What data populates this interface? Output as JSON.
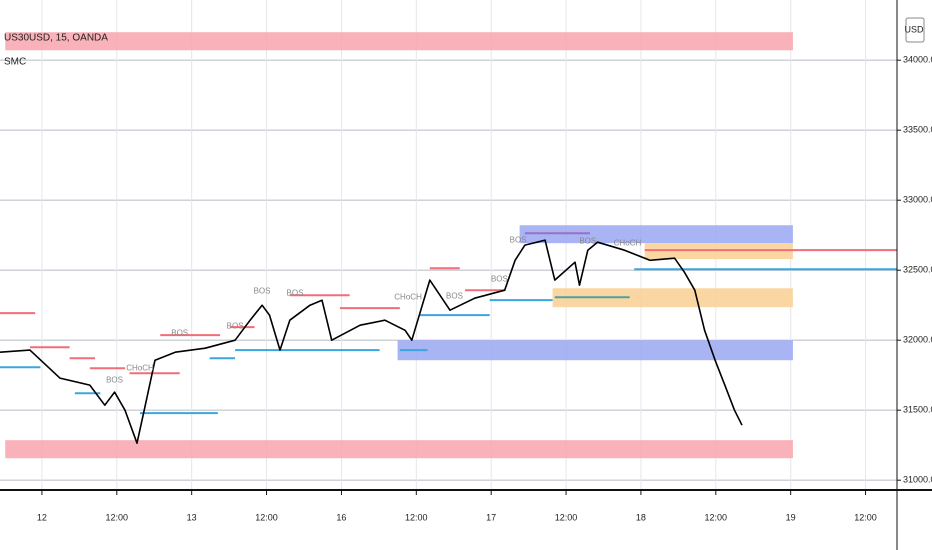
{
  "chart_data": {
    "type": "line",
    "title": "US30USD, 15, OANDA",
    "subtitle": "SMC",
    "y_axis_label": "USD",
    "color": "#000000",
    "grid": true,
    "x": [
      -0.56,
      -0.16,
      0.24,
      0.64,
      0.84,
      0.97,
      1.11,
      1.27,
      1.38,
      1.51,
      1.78,
      2.18,
      2.58,
      2.78,
      2.94,
      3.04,
      3.18,
      3.31,
      3.58,
      3.74,
      3.87,
      4.25,
      4.58,
      4.85,
      4.94,
      5.18,
      5.45,
      5.78,
      6.18,
      6.32,
      6.45,
      6.72,
      6.85,
      7.12,
      7.18,
      7.29,
      7.42,
      7.78,
      8.12,
      8.45,
      8.58,
      8.72,
      8.85,
      8.99,
      9.12,
      9.25,
      9.35
    ],
    "values": [
      31914,
      31929,
      31729,
      31679,
      31536,
      31629,
      31500,
      31264,
      31536,
      31857,
      31914,
      31943,
      32000,
      32143,
      32250,
      32179,
      31929,
      32143,
      32250,
      32286,
      32000,
      32107,
      32143,
      32071,
      32000,
      32429,
      32214,
      32300,
      32357,
      32571,
      32679,
      32714,
      32429,
      32557,
      32393,
      32643,
      32700,
      32643,
      32571,
      32586,
      32486,
      32357,
      32071,
      31857,
      31679,
      31500,
      31393
    ],
    "xlim": [
      -0.56,
      11.42
    ],
    "ylim": [
      30930,
      34430
    ],
    "xticks": [
      {
        "value": 0,
        "label": "12"
      },
      {
        "value": 1,
        "label": "12:00"
      },
      {
        "value": 2,
        "label": "13"
      },
      {
        "value": 3,
        "label": "12:00"
      },
      {
        "value": 4,
        "label": "16"
      },
      {
        "value": 5,
        "label": "12:00"
      },
      {
        "value": 6,
        "label": "17"
      },
      {
        "value": 7,
        "label": "12:00"
      },
      {
        "value": 8,
        "label": "18"
      },
      {
        "value": 9,
        "label": "12:00"
      },
      {
        "value": 10,
        "label": "19"
      },
      {
        "value": 11,
        "label": "12:00"
      }
    ],
    "yticks": [
      {
        "value": 34000,
        "label": "34000.0"
      },
      {
        "value": 33500,
        "label": "33500.0"
      },
      {
        "value": 33000,
        "label": "33000.0"
      },
      {
        "value": 32500,
        "label": "32500.0"
      },
      {
        "value": 32000,
        "label": "32000.0"
      },
      {
        "value": 31500,
        "label": "31500.0"
      },
      {
        "value": 31000,
        "label": "31000.0"
      }
    ],
    "zones": [
      {
        "x": [
          -0.49,
          10.03
        ],
        "y": [
          34071,
          34200
        ],
        "color": "#f8a5ad"
      },
      {
        "x": [
          -0.49,
          10.03
        ],
        "y": [
          31157,
          31286
        ],
        "color": "#f8a5ad"
      },
      {
        "x": [
          6.38,
          10.03
        ],
        "y": [
          32693,
          32821
        ],
        "color": "#9aa7f2"
      },
      {
        "x": [
          8.05,
          10.03
        ],
        "y": [
          32579,
          32693
        ],
        "color": "#f9cf93"
      },
      {
        "x": [
          6.82,
          10.03
        ],
        "y": [
          32236,
          32371
        ],
        "color": "#f9cf93"
      },
      {
        "x": [
          4.75,
          10.03
        ],
        "y": [
          31857,
          32000
        ],
        "color": "#9aa7f2"
      }
    ],
    "levels": [
      {
        "x": [
          8.05,
          11.42
        ],
        "y": 32643,
        "color": "#f26d78"
      },
      {
        "x": [
          7.91,
          11.42
        ],
        "y": 32507,
        "color": "#3aa6dd"
      },
      {
        "x": [
          -0.56,
          -0.09
        ],
        "y": 32193,
        "color": "#f26d78"
      },
      {
        "x": [
          -0.16,
          0.37
        ],
        "y": 31950,
        "color": "#f26d78"
      },
      {
        "x": [
          0.37,
          0.71
        ],
        "y": 31871,
        "color": "#f26d78"
      },
      {
        "x": [
          0.64,
          1.11
        ],
        "y": 31800,
        "color": "#f26d78"
      },
      {
        "x": [
          1.17,
          1.84
        ],
        "y": 31764,
        "color": "#f26d78"
      },
      {
        "x": [
          1.58,
          2.38
        ],
        "y": 32036,
        "color": "#f26d78"
      },
      {
        "x": [
          2.51,
          2.84
        ],
        "y": 32093,
        "color": "#f26d78"
      },
      {
        "x": [
          3.31,
          4.11
        ],
        "y": 32321,
        "color": "#f26d78"
      },
      {
        "x": [
          3.98,
          4.78
        ],
        "y": 32229,
        "color": "#f26d78"
      },
      {
        "x": [
          5.18,
          5.58
        ],
        "y": 32514,
        "color": "#f26d78"
      },
      {
        "x": [
          5.65,
          6.18
        ],
        "y": 32357,
        "color": "#f26d78"
      },
      {
        "x": [
          -0.56,
          -0.02
        ],
        "y": 31807,
        "color": "#3aa6dd"
      },
      {
        "x": [
          0.44,
          0.78
        ],
        "y": 31621,
        "color": "#3aa6dd"
      },
      {
        "x": [
          1.31,
          2.35
        ],
        "y": 31479,
        "color": "#3aa6dd"
      },
      {
        "x": [
          2.24,
          2.58
        ],
        "y": 31871,
        "color": "#3aa6dd"
      },
      {
        "x": [
          2.58,
          4.51
        ],
        "y": 31929,
        "color": "#3aa6dd"
      },
      {
        "x": [
          4.78,
          5.15
        ],
        "y": 31929,
        "color": "#3aa6dd"
      },
      {
        "x": [
          5.05,
          5.98
        ],
        "y": 32179,
        "color": "#3aa6dd"
      },
      {
        "x": [
          5.98,
          6.82
        ],
        "y": 32286,
        "color": "#3aa6dd"
      },
      {
        "x": [
          6.85,
          7.85
        ],
        "y": 32307,
        "color": "#4aa3a0"
      },
      {
        "x": [
          6.45,
          7.32
        ],
        "y": 32764,
        "color": "#9b6fc7"
      }
    ],
    "annotations": [
      {
        "text": "BOS",
        "x": 0.97,
        "y": 31714
      },
      {
        "text": "CHoCH",
        "x": 1.31,
        "y": 31800
      },
      {
        "text": "BOS",
        "x": 1.84,
        "y": 32050
      },
      {
        "text": "BOS",
        "x": 2.58,
        "y": 32100
      },
      {
        "text": "BOS",
        "x": 2.94,
        "y": 32350
      },
      {
        "text": "BOS",
        "x": 3.38,
        "y": 32336
      },
      {
        "text": "CHoCH",
        "x": 4.89,
        "y": 32307
      },
      {
        "text": "BOS",
        "x": 5.51,
        "y": 32314
      },
      {
        "text": "BOS",
        "x": 6.11,
        "y": 32436
      },
      {
        "text": "BOS",
        "x": 6.36,
        "y": 32714
      },
      {
        "text": "BOS",
        "x": 7.29,
        "y": 32707
      },
      {
        "text": "CHoCH",
        "x": 7.82,
        "y": 32693
      }
    ]
  }
}
